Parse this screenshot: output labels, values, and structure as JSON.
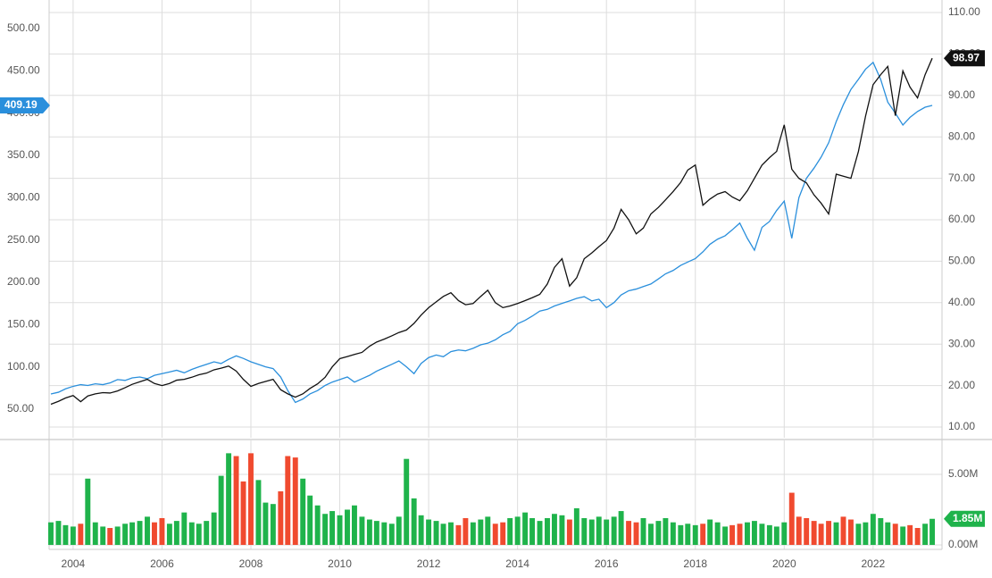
{
  "chart_data": {
    "type": "line",
    "x": [
      2003.5,
      2003.67,
      2003.83,
      2004,
      2004.17,
      2004.33,
      2004.5,
      2004.67,
      2004.83,
      2005,
      2005.17,
      2005.33,
      2005.5,
      2005.67,
      2005.83,
      2006,
      2006.17,
      2006.33,
      2006.5,
      2006.67,
      2006.83,
      2007,
      2007.17,
      2007.33,
      2007.5,
      2007.67,
      2007.83,
      2008,
      2008.17,
      2008.33,
      2008.5,
      2008.67,
      2008.83,
      2009,
      2009.17,
      2009.33,
      2009.5,
      2009.67,
      2009.83,
      2010,
      2010.17,
      2010.33,
      2010.5,
      2010.67,
      2010.83,
      2011,
      2011.17,
      2011.33,
      2011.5,
      2011.67,
      2011.83,
      2012,
      2012.17,
      2012.33,
      2012.5,
      2012.67,
      2012.83,
      2013,
      2013.17,
      2013.33,
      2013.5,
      2013.67,
      2013.83,
      2014,
      2014.17,
      2014.33,
      2014.5,
      2014.67,
      2014.83,
      2015,
      2015.17,
      2015.33,
      2015.5,
      2015.67,
      2015.83,
      2016,
      2016.17,
      2016.33,
      2016.5,
      2016.67,
      2016.83,
      2017,
      2017.17,
      2017.33,
      2017.5,
      2017.67,
      2017.83,
      2018,
      2018.17,
      2018.33,
      2018.5,
      2018.67,
      2018.83,
      2019,
      2019.17,
      2019.33,
      2019.5,
      2019.67,
      2019.83,
      2020,
      2020.17,
      2020.33,
      2020.5,
      2020.67,
      2020.83,
      2021,
      2021.17,
      2021.33,
      2021.5,
      2021.67,
      2021.83,
      2022,
      2022.17,
      2022.33,
      2022.5,
      2022.67,
      2022.83,
      2023,
      2023.17,
      2023.33
    ],
    "series": [
      {
        "color": "#2a8fdc",
        "axis": "y",
        "values": [
          68,
          70,
          74,
          77,
          79,
          78,
          80,
          79,
          81,
          85,
          84,
          87,
          88,
          86,
          90,
          92,
          94,
          96,
          93,
          97,
          100,
          103,
          106,
          104,
          109,
          113,
          110,
          106,
          103,
          100,
          98,
          88,
          72,
          58,
          62,
          68,
          72,
          78,
          82,
          85,
          88,
          82,
          86,
          90,
          95,
          99,
          103,
          107,
          100,
          92,
          104,
          111,
          114,
          112,
          118,
          120,
          119,
          122,
          126,
          128,
          132,
          138,
          142,
          151,
          155,
          160,
          166,
          168,
          172,
          175,
          178,
          181,
          183,
          178,
          180,
          170,
          176,
          185,
          190,
          192,
          195,
          198,
          204,
          210,
          214,
          220,
          224,
          228,
          236,
          245,
          251,
          255,
          262,
          270,
          252,
          238,
          265,
          272,
          285,
          296,
          252,
          300,
          323,
          335,
          348,
          365,
          390,
          410,
          428,
          440,
          452,
          460,
          440,
          413,
          400,
          386,
          395,
          402,
          407,
          409.19
        ]
      },
      {
        "color": "#111111",
        "axis": "y2",
        "values": [
          15.5,
          16.2,
          17,
          17.6,
          16.1,
          17.5,
          18,
          18.3,
          18.2,
          18.7,
          19.5,
          20.3,
          20.9,
          21.5,
          20.5,
          20,
          20.5,
          21.3,
          21.5,
          22,
          22.6,
          23,
          23.8,
          24.2,
          24.7,
          23.5,
          21.5,
          19.8,
          20.5,
          21,
          21.5,
          19,
          18,
          17.2,
          18,
          19.3,
          20.4,
          22,
          24.5,
          26.5,
          27,
          27.5,
          28,
          29.5,
          30.5,
          31.2,
          32,
          32.8,
          33.4,
          35,
          37,
          38.8,
          40.2,
          41.5,
          42.4,
          40.5,
          39.5,
          39.8,
          41.5,
          43,
          40,
          38.8,
          39.2,
          39.8,
          40.5,
          41.2,
          42,
          44.5,
          48.5,
          50.6,
          44,
          46,
          50.6,
          52,
          53.5,
          55,
          58,
          62.5,
          60,
          56.6,
          58,
          61.4,
          63,
          64.8,
          66.8,
          69,
          72,
          73.2,
          63.5,
          65,
          66.2,
          66.8,
          65.5,
          64.6,
          67,
          70,
          73.2,
          75,
          76.5,
          82.9,
          72.2,
          70,
          68.9,
          66,
          64,
          61.4,
          71,
          70.5,
          70,
          76.5,
          85,
          92.6,
          95,
          97,
          85.1,
          95.9,
          92,
          89.4,
          95,
          98.97
        ]
      },
      {
        "type": "bar",
        "axis": "volume",
        "up_color": "#1fb34b",
        "down_color": "#f04a2f",
        "value_label": "1.85M",
        "values": [
          1.6,
          1.7,
          1.4,
          1.3,
          1.5,
          4.7,
          1.6,
          1.3,
          1.2,
          1.3,
          1.5,
          1.6,
          1.7,
          2.0,
          1.6,
          1.9,
          1.5,
          1.7,
          2.3,
          1.6,
          1.5,
          1.7,
          2.3,
          4.9,
          6.5,
          6.3,
          4.5,
          6.5,
          4.6,
          3.0,
          2.9,
          3.8,
          6.3,
          6.2,
          4.7,
          3.5,
          2.8,
          2.2,
          2.4,
          2.1,
          2.5,
          2.8,
          2.0,
          1.8,
          1.7,
          1.6,
          1.5,
          2.0,
          6.1,
          3.3,
          2.1,
          1.8,
          1.7,
          1.5,
          1.6,
          1.4,
          1.9,
          1.6,
          1.8,
          2.0,
          1.5,
          1.6,
          1.9,
          2.0,
          2.3,
          1.9,
          1.7,
          1.9,
          2.2,
          2.1,
          1.8,
          2.6,
          1.9,
          1.8,
          2.0,
          1.8,
          2.0,
          2.4,
          1.7,
          1.6,
          1.9,
          1.5,
          1.7,
          1.9,
          1.6,
          1.4,
          1.5,
          1.4,
          1.5,
          1.8,
          1.6,
          1.3,
          1.4,
          1.5,
          1.6,
          1.7,
          1.5,
          1.4,
          1.3,
          1.6,
          3.7,
          2.0,
          1.9,
          1.7,
          1.5,
          1.7,
          1.6,
          2.0,
          1.8,
          1.5,
          1.6,
          2.2,
          1.9,
          1.6,
          1.5,
          1.3,
          1.4,
          1.2,
          1.5,
          1.85
        ]
      }
    ],
    "xlim": [
      2003.46,
      2023.55
    ],
    "xticks": [
      2004,
      2006,
      2008,
      2010,
      2012,
      2014,
      2016,
      2018,
      2020,
      2022
    ],
    "ylim": [
      16.2,
      533.8
    ],
    "yticks": [
      {
        "value": 50,
        "label": "50.00"
      },
      {
        "value": 100,
        "label": "100.00"
      },
      {
        "value": 150,
        "label": "150.00"
      },
      {
        "value": 200,
        "label": "200.00"
      },
      {
        "value": 250,
        "label": "250.00"
      },
      {
        "value": 300,
        "label": "300.00"
      },
      {
        "value": 350,
        "label": "350.00"
      },
      {
        "value": 400,
        "label": "400.00"
      },
      {
        "value": 450,
        "label": "450.00"
      },
      {
        "value": 500,
        "label": "500.00"
      }
    ],
    "y2lim": [
      7.41,
      113.02
    ],
    "y2ticks": [
      {
        "value": 10,
        "label": "10.00"
      },
      {
        "value": 20,
        "label": "20.00"
      },
      {
        "value": 30,
        "label": "30.00"
      },
      {
        "value": 40,
        "label": "40.00"
      },
      {
        "value": 50,
        "label": "50.00"
      },
      {
        "value": 60,
        "label": "60.00"
      },
      {
        "value": 70,
        "label": "70.00"
      },
      {
        "value": 80,
        "label": "80.00"
      },
      {
        "value": 90,
        "label": "90.00"
      },
      {
        "value": 100,
        "label": "100.00"
      },
      {
        "value": 110,
        "label": "110.00"
      }
    ],
    "volume_lim": [
      -0.32,
      7.41
    ],
    "volume_ticks": [
      {
        "value": 0,
        "label": "0.00M"
      },
      {
        "value": 5,
        "label": "5.00M"
      }
    ],
    "grid": true
  }
}
